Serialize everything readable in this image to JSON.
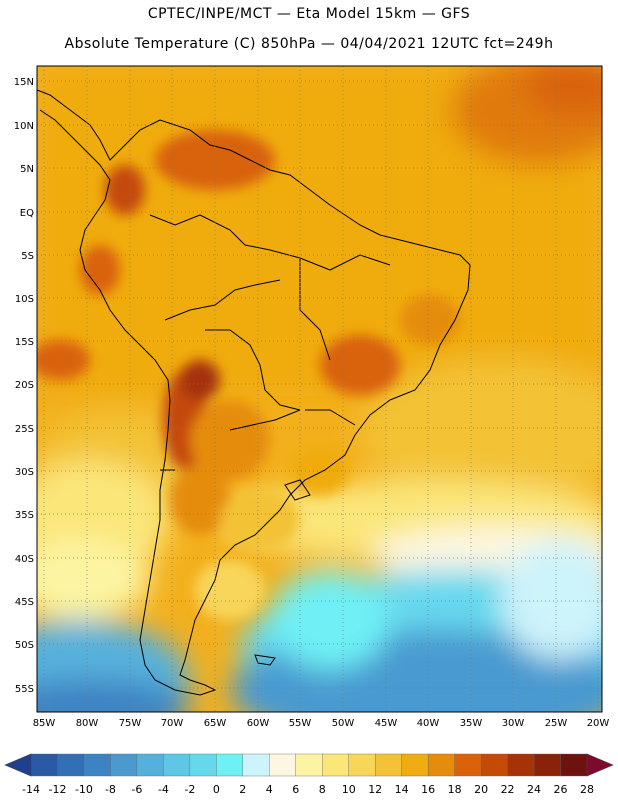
{
  "header": {
    "line1": "CPTEC/INPE/MCT —  Eta Model 15km — GFS",
    "line2": "Absolute Temperature (C) 850hPa — 04/04/2021 12UTC fct=249h"
  },
  "map": {
    "lat_labels": [
      "15N",
      "10N",
      "5N",
      "EQ",
      "5S",
      "10S",
      "15S",
      "20S",
      "25S",
      "30S",
      "35S",
      "40S",
      "45S",
      "50S",
      "55S"
    ],
    "lon_labels": [
      "85W",
      "80W",
      "75W",
      "70W",
      "65W",
      "60W",
      "55W",
      "50W",
      "45W",
      "40W",
      "35W",
      "30W",
      "25W",
      "20W"
    ],
    "grid": "dotted"
  },
  "colorbar": {
    "ticks": [
      "-14",
      "-12",
      "-10",
      "-8",
      "-6",
      "-4",
      "-2",
      "0",
      "2",
      "4",
      "6",
      "8",
      "10",
      "12",
      "14",
      "16",
      "18",
      "20",
      "22",
      "24",
      "26",
      "28"
    ],
    "colors": [
      "#1f3f8f",
      "#2a5aa5",
      "#326fb6",
      "#3c83c3",
      "#4a9ad0",
      "#56b0dc",
      "#5fc6e6",
      "#66d8ee",
      "#6ff0f5",
      "#cdf3fb",
      "#fdf7e1",
      "#fdf4a3",
      "#fbe67a",
      "#f8d65a",
      "#f3c236",
      "#f0ac10",
      "#e58c0d",
      "#d9620b",
      "#c44a08",
      "#a53307",
      "#8a2209",
      "#6e1210",
      "#7d0a2c"
    ]
  }
}
